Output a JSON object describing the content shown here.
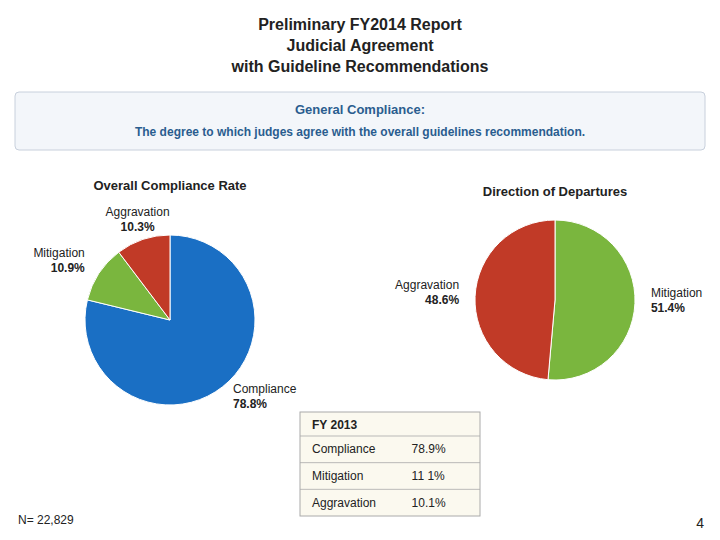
{
  "title": "Preliminary FY2014 Report\nJudicial Agreement\nwith Guideline Recommendations",
  "subtitle": "General Compliance:\nThe degree to which judges agree with the overall guidelines recommendation.",
  "annotations": [
    "N= 22,829",
    "4"
  ],
  "chart_data": [
    {
      "type": "pie",
      "title": "Overall Compliance Rate",
      "categories": [
        "Compliance",
        "Mitigation",
        "Aggravation"
      ],
      "values": [
        78.8,
        10.9,
        10.3
      ],
      "value_labels": [
        "78.8%",
        "10.9%",
        "10.3%"
      ],
      "colors": [
        "#1a6fc4",
        "#7ab63e",
        "#c13a27"
      ],
      "data_labels": true
    },
    {
      "type": "pie",
      "title": "Direction of Departures",
      "categories": [
        "Mitigation",
        "Aggravation"
      ],
      "values": [
        51.4,
        48.6
      ],
      "value_labels": [
        "51.4%",
        "48.6%"
      ],
      "colors": [
        "#7ab63e",
        "#c13a27"
      ],
      "data_labels": true
    },
    {
      "type": "table",
      "title": "FY 2013",
      "categories": [
        "Compliance",
        "Mitigation",
        "Aggravation"
      ],
      "cells": [
        "78.9%",
        "11 1%",
        "10.1%"
      ]
    }
  ]
}
